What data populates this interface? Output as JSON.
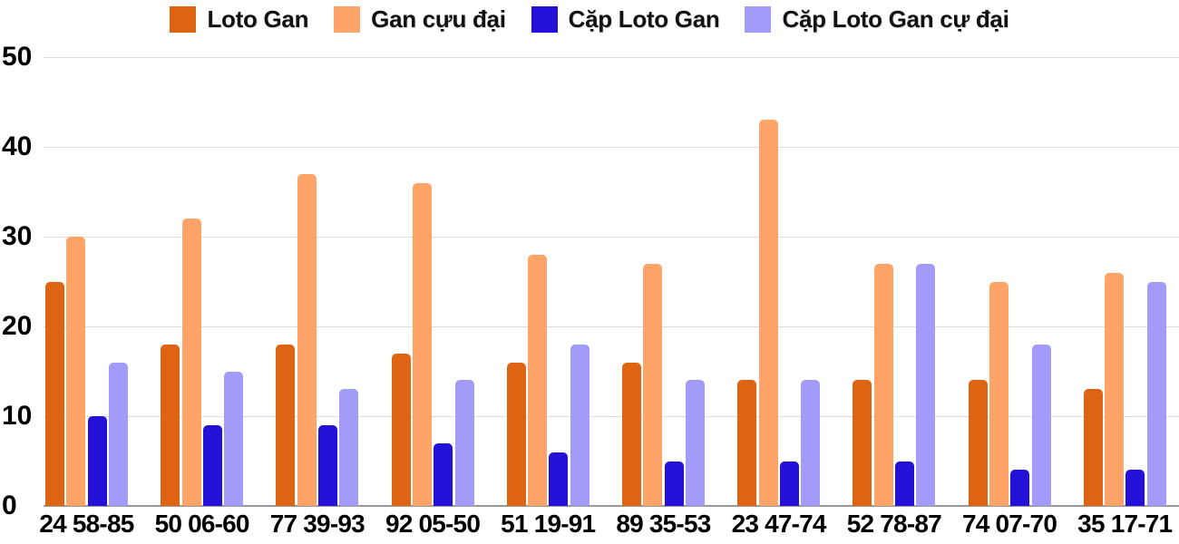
{
  "chart_data": {
    "type": "bar",
    "title": "",
    "xlabel": "",
    "ylabel": "",
    "categories": [
      "24 58-85",
      "50 06-60",
      "77 39-93",
      "92 05-50",
      "51 19-91",
      "89 35-53",
      "23 47-74",
      "52 78-87",
      "74 07-70",
      "35 17-71"
    ],
    "series": [
      {
        "name": "Loto Gan",
        "color": "#DE6414",
        "values": [
          25,
          18,
          18,
          17,
          16,
          16,
          14,
          14,
          14,
          13
        ]
      },
      {
        "name": "Gan cựu đại",
        "color": "#FFA469",
        "values": [
          30,
          32,
          37,
          36,
          28,
          27,
          43,
          27,
          25,
          26
        ]
      },
      {
        "name": "Cặp Loto Gan",
        "color": "#2311D7",
        "values": [
          10,
          9,
          9,
          7,
          6,
          5,
          5,
          5,
          4,
          4
        ]
      },
      {
        "name": "Cặp Loto Gan cự đại",
        "color": "#A29BFA",
        "values": [
          16,
          15,
          13,
          14,
          18,
          14,
          14,
          27,
          18,
          25
        ]
      }
    ],
    "ylim": [
      0,
      50
    ],
    "yticks": [
      0,
      10,
      20,
      30,
      40,
      50
    ],
    "grid": true,
    "legend_position": "top",
    "colors": {
      "gridline": "#dddddd",
      "axis_line": "#999999",
      "text": "#000000",
      "background": "#ffffff"
    }
  }
}
